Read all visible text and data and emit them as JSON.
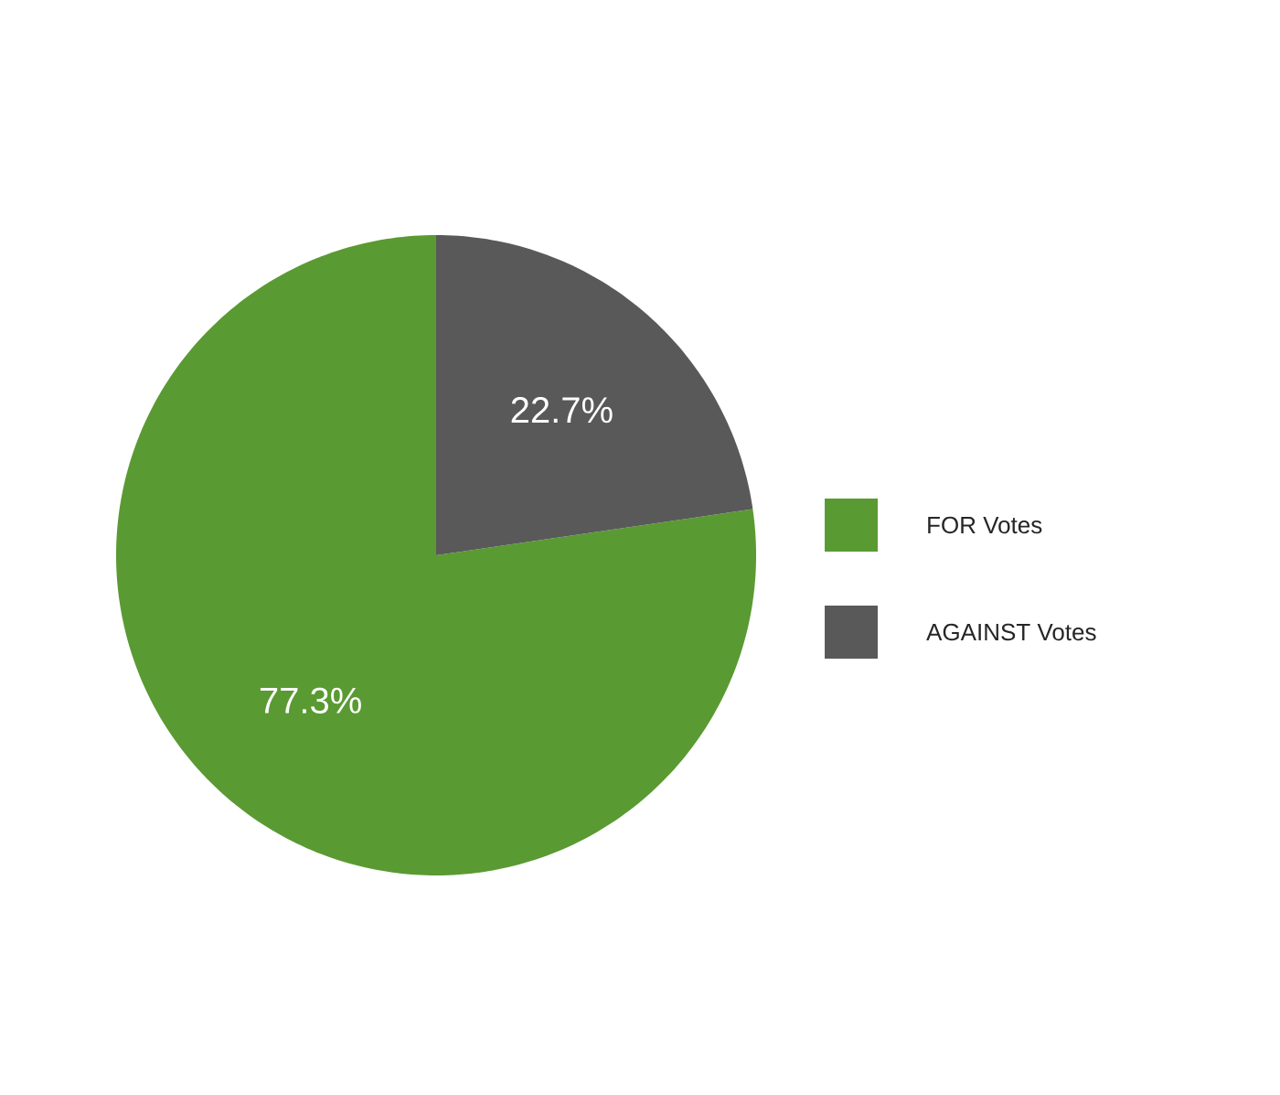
{
  "chart_data": {
    "type": "pie",
    "categories": [
      "FOR Votes",
      "AGAINST Votes"
    ],
    "values": [
      77.3,
      22.7
    ],
    "colors": [
      "#5a9a32",
      "#595959"
    ],
    "value_labels": [
      "77.3%",
      "22.7%"
    ],
    "legend": "right"
  }
}
